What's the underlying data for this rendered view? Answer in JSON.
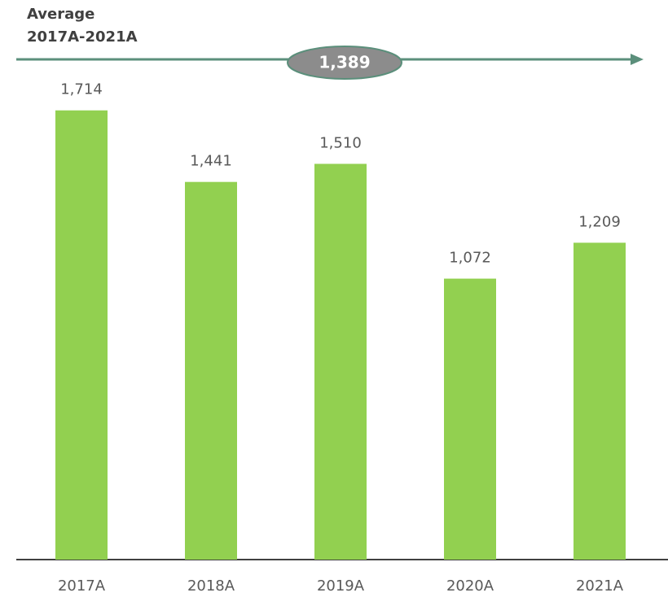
{
  "chart_data": {
    "type": "bar",
    "average": {
      "title": [
        "Average",
        "2017A-2021A"
      ],
      "value": 1389,
      "value_label": "1,389"
    },
    "categories": [
      "2017A",
      "2018A",
      "2019A",
      "2020A",
      "2021A"
    ],
    "values": [
      1714,
      1441,
      1510,
      1072,
      1209
    ],
    "value_labels": [
      "1,714",
      "1,441",
      "1,510",
      "1,072",
      "1,209"
    ],
    "color": "#92d050",
    "ylim": [
      0,
      1800
    ]
  }
}
